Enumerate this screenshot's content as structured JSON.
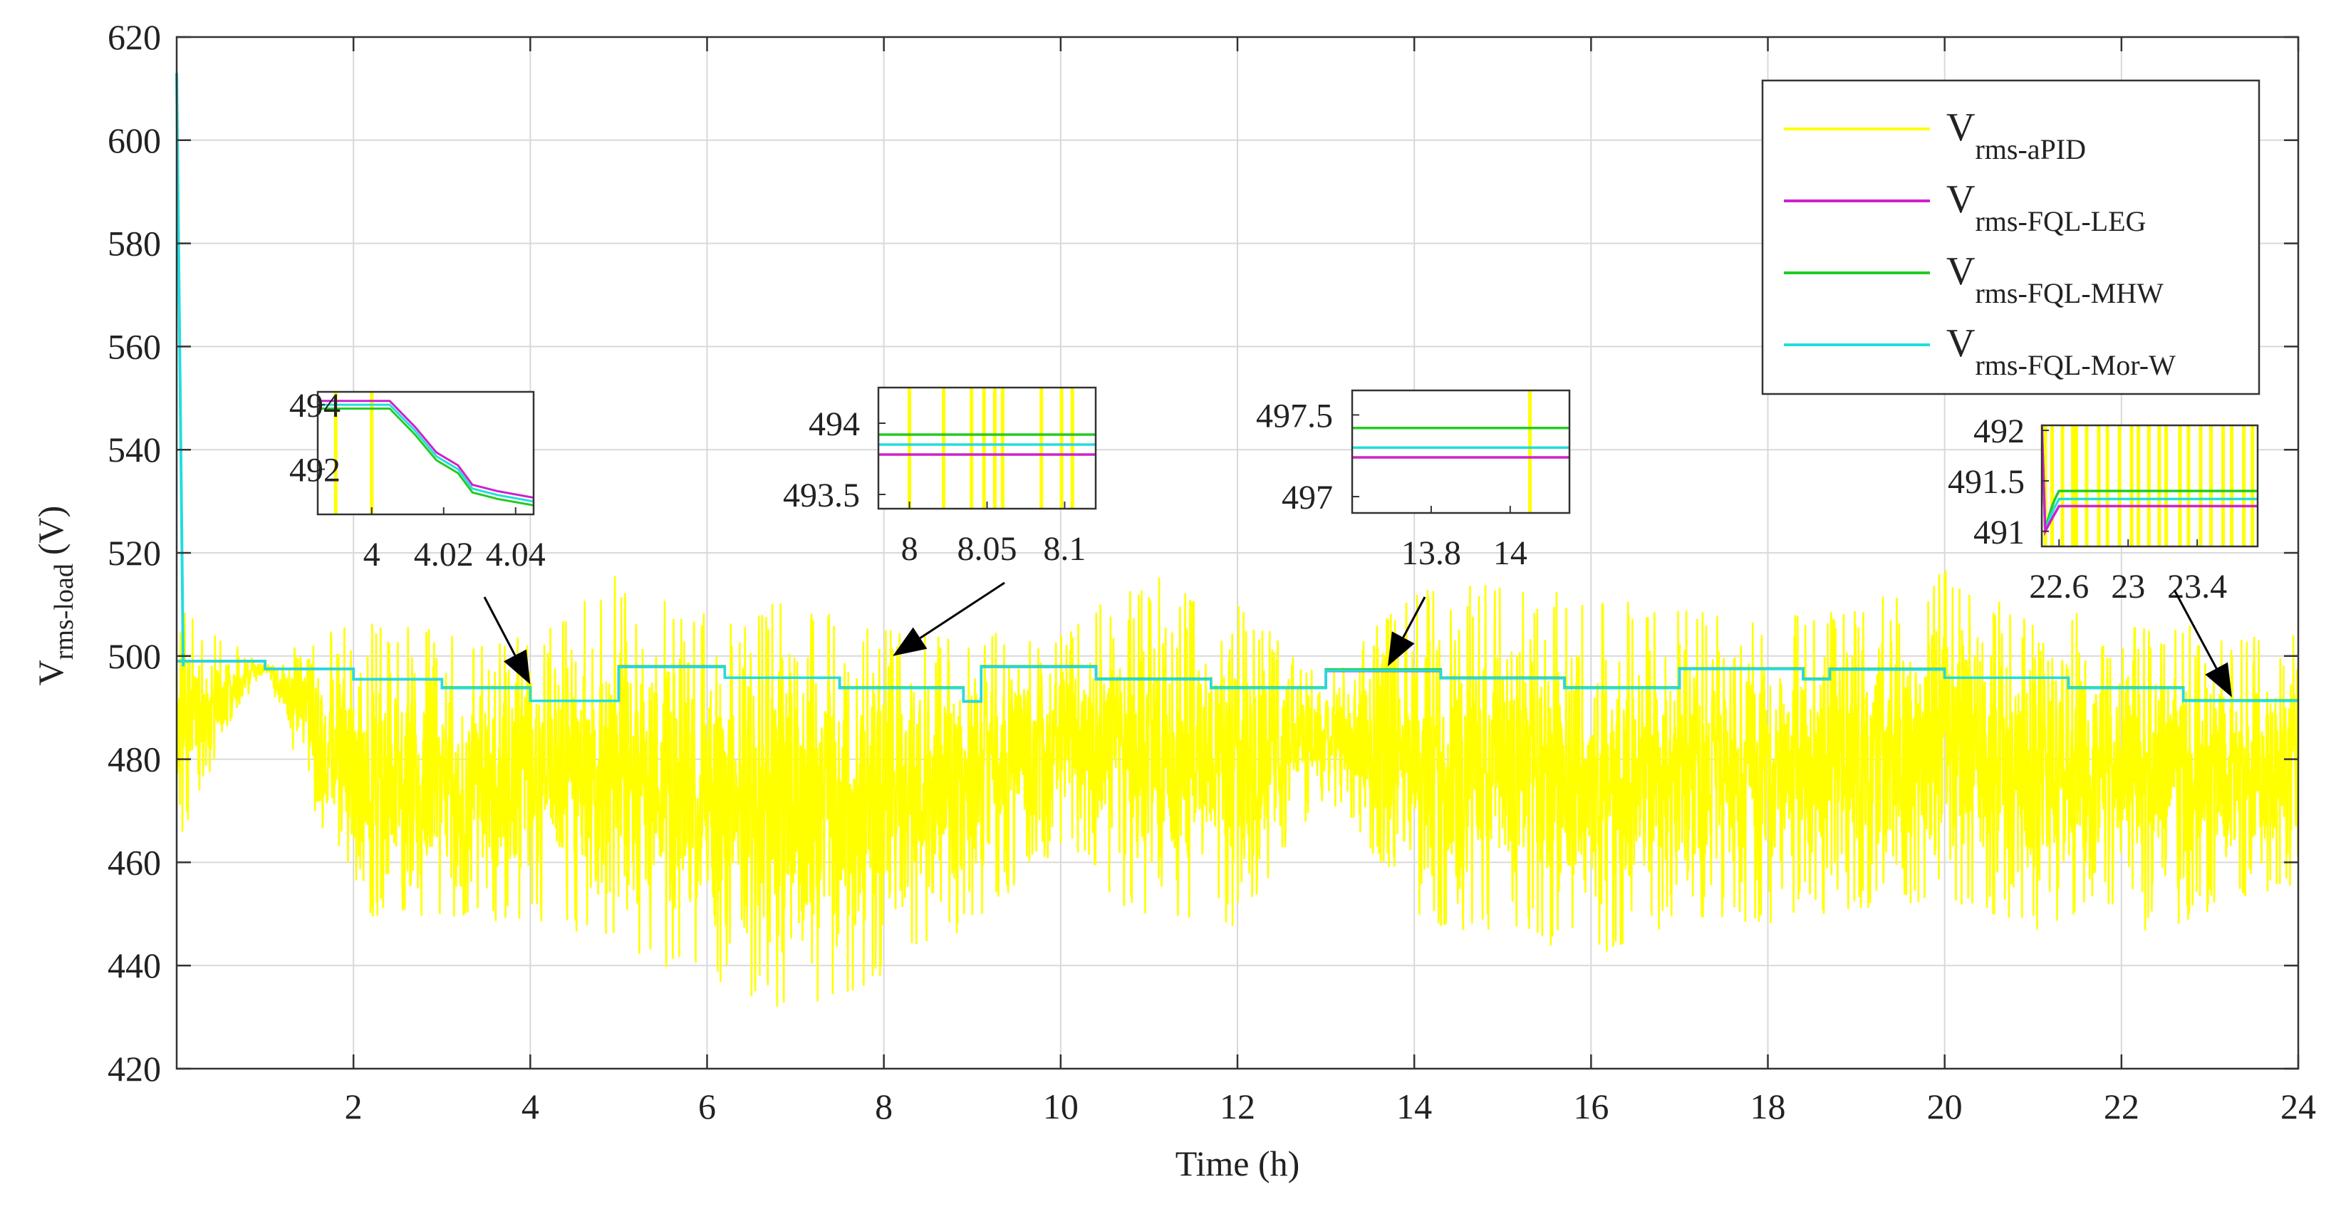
{
  "chart_data": {
    "type": "line",
    "title": "",
    "xlabel": "Time (h)",
    "ylabel": {
      "main": "V",
      "sub": "rms-load",
      "unit": "(V)"
    },
    "xlim": [
      0,
      24
    ],
    "ylim": [
      420,
      620
    ],
    "xticks": [
      2,
      4,
      6,
      8,
      10,
      12,
      14,
      16,
      18,
      20,
      22,
      24
    ],
    "xtick_labels": [
      "2",
      "4",
      "6",
      "8",
      "10",
      "12",
      "14",
      "16",
      "18",
      "20",
      "22",
      "24"
    ],
    "yticks": [
      420,
      440,
      460,
      480,
      500,
      520,
      540,
      560,
      580,
      600,
      620
    ],
    "ytick_labels": [
      "420",
      "440",
      "460",
      "480",
      "500",
      "520",
      "540",
      "560",
      "580",
      "600",
      "620"
    ],
    "grid": true,
    "legend_position": "top-right",
    "colors": {
      "aPID": "#ffff00",
      "LEG": "#cc22cc",
      "MHW": "#22cc22",
      "MorW": "#22dddd",
      "grid": "#d9d9d9",
      "axis": "#333333"
    },
    "series": [
      {
        "key": "aPID",
        "name": "V rms-aPID",
        "legend_main": "V",
        "legend_sub": "rms-aPID",
        "noisy": true,
        "note": "highly oscillating signal around 455-515 V (min ~430, max ~517); envelope values listed per hour",
        "x": [
          0,
          1,
          2,
          3,
          4,
          5,
          6,
          7,
          8,
          9,
          10,
          11,
          12,
          13,
          14,
          15,
          16,
          17,
          18,
          19,
          20,
          21,
          22,
          23,
          24
        ],
        "low": [
          463,
          497,
          447,
          448,
          449,
          443,
          436,
          431,
          437,
          448,
          463,
          447,
          447,
          473,
          448,
          446,
          441,
          448,
          448,
          451,
          452,
          447,
          446,
          449,
          456
        ],
        "high": [
          510,
          499,
          507,
          506,
          504,
          516,
          508,
          511,
          505,
          505,
          505,
          516,
          510,
          497,
          513,
          514,
          512,
          510,
          507,
          510,
          518,
          507,
          510,
          505,
          505
        ]
      },
      {
        "key": "LEG",
        "name": "V rms-FQL-LEG",
        "legend_main": "V",
        "legend_sub": "rms-FQL-LEG",
        "steps": [
          [
            0,
            499
          ],
          [
            1,
            497.5
          ],
          [
            2,
            495.5
          ],
          [
            3,
            493.8
          ],
          [
            4,
            491.3
          ],
          [
            5,
            497.9
          ],
          [
            6.2,
            495.8
          ],
          [
            7.5,
            493.8
          ],
          [
            8.9,
            491.2
          ],
          [
            9.1,
            497.9
          ],
          [
            10.4,
            495.5
          ],
          [
            11.7,
            493.8
          ],
          [
            13,
            497.1
          ],
          [
            14.3,
            495.7
          ],
          [
            15.7,
            493.8
          ],
          [
            17,
            497.5
          ],
          [
            18.4,
            495.5
          ],
          [
            18.7,
            497.4
          ],
          [
            20,
            495.8
          ],
          [
            21.4,
            493.8
          ],
          [
            22.7,
            491.3
          ]
        ]
      },
      {
        "key": "MHW",
        "name": "V rms-FQL-MHW",
        "legend_main": "V",
        "legend_sub": "rms-FQL-MHW",
        "steps": [
          [
            0,
            499
          ],
          [
            1,
            497.5
          ],
          [
            2,
            495.5
          ],
          [
            3,
            493.9
          ],
          [
            4,
            491.3
          ],
          [
            5,
            498
          ],
          [
            6.2,
            495.8
          ],
          [
            7.5,
            493.9
          ],
          [
            8.9,
            491.2
          ],
          [
            9.1,
            498
          ],
          [
            10.4,
            495.6
          ],
          [
            11.7,
            493.9
          ],
          [
            13,
            497.4
          ],
          [
            14.3,
            495.8
          ],
          [
            15.7,
            493.9
          ],
          [
            17,
            497.6
          ],
          [
            18.4,
            495.6
          ],
          [
            18.7,
            497.5
          ],
          [
            20,
            495.8
          ],
          [
            21.4,
            493.9
          ],
          [
            22.7,
            491.4
          ]
        ]
      },
      {
        "key": "MorW",
        "name": "V rms-FQL-Mor-W",
        "legend_main": "V",
        "legend_sub": "rms-FQL-Mor-W",
        "start_spike": [
          [
            0,
            613
          ],
          [
            0.05,
            498
          ]
        ],
        "steps": [
          [
            0,
            499
          ],
          [
            1,
            497.5
          ],
          [
            2,
            495.5
          ],
          [
            3,
            493.8
          ],
          [
            4,
            491.3
          ],
          [
            5,
            497.9
          ],
          [
            6.2,
            495.8
          ],
          [
            7.5,
            493.8
          ],
          [
            8.9,
            491.2
          ],
          [
            9.1,
            497.9
          ],
          [
            10.4,
            495.5
          ],
          [
            11.7,
            493.8
          ],
          [
            13,
            497.2
          ],
          [
            14.3,
            495.7
          ],
          [
            15.7,
            493.8
          ],
          [
            17,
            497.5
          ],
          [
            18.4,
            495.5
          ],
          [
            18.7,
            497.4
          ],
          [
            20,
            495.8
          ],
          [
            21.4,
            493.8
          ],
          [
            22.7,
            491.3
          ]
        ]
      }
    ],
    "insets": [
      {
        "key": "i1",
        "xlim": [
          3.985,
          4.045
        ],
        "ylim": [
          490.6,
          494.4
        ],
        "xtick_labels": [
          "4",
          "4.02",
          "4.04"
        ],
        "xticks": [
          4,
          4.02,
          4.04
        ],
        "ytick_labels": [
          "494",
          "492"
        ],
        "yticks": [
          494,
          492
        ],
        "arrow_to": [
          4.0,
          494.5
        ],
        "curve": [
          [
            3.985,
            494.0
          ],
          [
            4.005,
            494.0
          ],
          [
            4.012,
            493.2
          ],
          [
            4.018,
            492.4
          ],
          [
            4.024,
            492.0
          ],
          [
            4.028,
            491.4
          ],
          [
            4.035,
            491.2
          ],
          [
            4.045,
            491.0
          ]
        ],
        "apid_spikes": [
          3.99,
          4.0
        ]
      },
      {
        "key": "i2",
        "xlim": [
          7.98,
          8.12
        ],
        "ylim": [
          493.4,
          494.25
        ],
        "xtick_labels": [
          "8",
          "8.05",
          "8.1"
        ],
        "xticks": [
          8,
          8.05,
          8.1
        ],
        "ytick_labels": [
          "494",
          "493.5"
        ],
        "yticks": [
          494,
          493.5
        ],
        "arrow_to": [
          8.1,
          500
        ],
        "levels": {
          "MHW": 493.92,
          "MorW": 493.85,
          "LEG": 493.78
        },
        "apid_spikes": [
          8.0,
          8.022,
          8.04,
          8.048,
          8.055,
          8.06,
          8.085,
          8.098,
          8.105
        ]
      },
      {
        "key": "i3",
        "xlim": [
          13.6,
          14.15
        ],
        "ylim": [
          496.9,
          497.65
        ],
        "xtick_labels": [
          "13.8",
          "14"
        ],
        "xticks": [
          13.8,
          14.0
        ],
        "ytick_labels": [
          "497.5",
          "497"
        ],
        "yticks": [
          497.5,
          497
        ],
        "arrow_to": [
          13.7,
          498
        ],
        "levels": {
          "MHW": 497.42,
          "MorW": 497.3,
          "LEG": 497.24
        },
        "apid_spikes": [
          14.05
        ]
      },
      {
        "key": "i4",
        "xlim": [
          22.5,
          23.75
        ],
        "ylim": [
          490.85,
          492.05
        ],
        "xtick_labels": [
          "22.6",
          "23",
          "23.4"
        ],
        "xticks": [
          22.6,
          23,
          23.4
        ],
        "ytick_labels": [
          "492",
          "491.5",
          "491"
        ],
        "yticks": [
          492,
          491.5,
          491
        ],
        "arrow_to": [
          23.25,
          492
        ],
        "curve_levels": {
          "MHW": 491.4,
          "MorW": 491.32,
          "LEG": 491.25
        },
        "apid_spikes": [
          22.52,
          22.56,
          22.62,
          22.68,
          22.7,
          22.76,
          22.83,
          22.88,
          22.95,
          23.02,
          23.06,
          23.12,
          23.18,
          23.22,
          23.3,
          23.35,
          23.42,
          23.48,
          23.55,
          23.6,
          23.67,
          23.72
        ]
      }
    ]
  }
}
